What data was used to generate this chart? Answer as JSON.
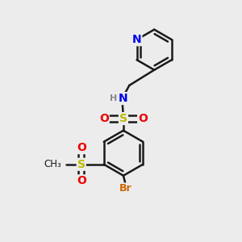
{
  "bg_color": "#ececec",
  "bond_color": "#1a1a1a",
  "bond_width": 1.8,
  "dbo": 0.055,
  "atom_colors": {
    "N": "#0000ee",
    "O": "#ee0000",
    "S": "#bbbb00",
    "Br": "#cc6600",
    "C": "#1a1a1a",
    "H": "#888888"
  },
  "font_size": 9
}
